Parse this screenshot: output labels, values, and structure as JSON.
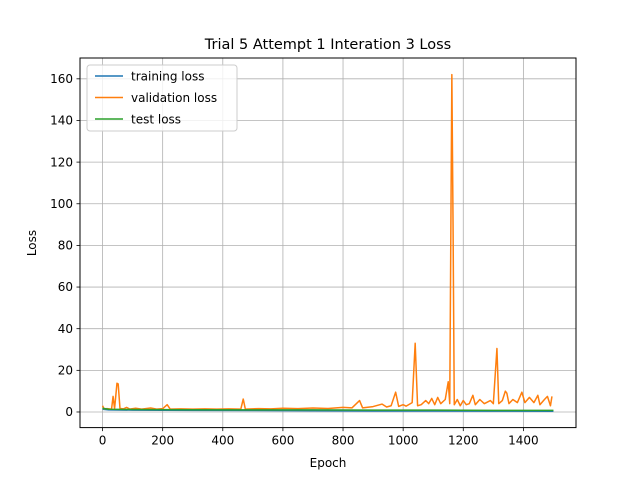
{
  "chart_data": {
    "type": "line",
    "title": "Trial 5 Attempt 1 Interation 3 Loss",
    "xlabel": "Epoch",
    "ylabel": "Loss",
    "xlim": [
      -75,
      1575
    ],
    "ylim": [
      -7.5,
      170
    ],
    "xticks": [
      0,
      200,
      400,
      600,
      800,
      1000,
      1200,
      1400
    ],
    "yticks": [
      0,
      20,
      40,
      60,
      80,
      100,
      120,
      140,
      160
    ],
    "grid": true,
    "legend": "top-left",
    "series": [
      {
        "name": "training loss",
        "color": "#1f77b4",
        "points": [
          [
            0,
            1.3
          ],
          [
            20,
            1.0
          ],
          [
            100,
            0.9
          ],
          [
            300,
            0.8
          ],
          [
            500,
            0.7
          ],
          [
            700,
            0.6
          ],
          [
            900,
            0.5
          ],
          [
            1100,
            0.45
          ],
          [
            1300,
            0.4
          ],
          [
            1500,
            0.35
          ]
        ]
      },
      {
        "name": "validation loss",
        "color": "#ff7f0e",
        "points": [
          [
            0,
            3.0
          ],
          [
            5,
            1.5
          ],
          [
            15,
            1.6
          ],
          [
            30,
            1.4
          ],
          [
            35,
            7.5
          ],
          [
            40,
            1.6
          ],
          [
            48,
            13.8
          ],
          [
            52,
            13.5
          ],
          [
            58,
            1.7
          ],
          [
            70,
            1.5
          ],
          [
            80,
            2.2
          ],
          [
            90,
            1.4
          ],
          [
            110,
            1.8
          ],
          [
            130,
            1.4
          ],
          [
            160,
            1.9
          ],
          [
            180,
            1.4
          ],
          [
            200,
            1.6
          ],
          [
            215,
            3.5
          ],
          [
            225,
            1.4
          ],
          [
            260,
            1.5
          ],
          [
            300,
            1.4
          ],
          [
            340,
            1.5
          ],
          [
            380,
            1.4
          ],
          [
            420,
            1.5
          ],
          [
            460,
            1.4
          ],
          [
            468,
            6.2
          ],
          [
            475,
            1.4
          ],
          [
            520,
            1.6
          ],
          [
            560,
            1.5
          ],
          [
            600,
            1.8
          ],
          [
            650,
            1.6
          ],
          [
            700,
            1.9
          ],
          [
            750,
            1.7
          ],
          [
            800,
            2.2
          ],
          [
            830,
            2.0
          ],
          [
            855,
            5.5
          ],
          [
            865,
            2.0
          ],
          [
            900,
            2.6
          ],
          [
            930,
            3.8
          ],
          [
            945,
            2.4
          ],
          [
            960,
            3.0
          ],
          [
            975,
            9.5
          ],
          [
            985,
            2.7
          ],
          [
            1000,
            3.5
          ],
          [
            1010,
            2.8
          ],
          [
            1030,
            4.5
          ],
          [
            1040,
            33.0
          ],
          [
            1048,
            3.0
          ],
          [
            1060,
            3.5
          ],
          [
            1075,
            5.5
          ],
          [
            1085,
            4.0
          ],
          [
            1095,
            6.5
          ],
          [
            1105,
            3.5
          ],
          [
            1115,
            7.0
          ],
          [
            1125,
            4.0
          ],
          [
            1140,
            6.0
          ],
          [
            1150,
            14.5
          ],
          [
            1155,
            4.0
          ],
          [
            1162,
            162.0
          ],
          [
            1166,
            90.0
          ],
          [
            1170,
            3.5
          ],
          [
            1180,
            6.0
          ],
          [
            1190,
            3.0
          ],
          [
            1200,
            5.5
          ],
          [
            1210,
            3.5
          ],
          [
            1220,
            4.0
          ],
          [
            1232,
            8.0
          ],
          [
            1240,
            3.5
          ],
          [
            1255,
            6.0
          ],
          [
            1270,
            4.0
          ],
          [
            1290,
            5.5
          ],
          [
            1300,
            4.0
          ],
          [
            1312,
            30.5
          ],
          [
            1318,
            4.0
          ],
          [
            1330,
            5.5
          ],
          [
            1340,
            10.0
          ],
          [
            1345,
            9.0
          ],
          [
            1352,
            4.0
          ],
          [
            1365,
            6.0
          ],
          [
            1380,
            4.5
          ],
          [
            1395,
            9.5
          ],
          [
            1405,
            4.5
          ],
          [
            1420,
            7.0
          ],
          [
            1435,
            4.5
          ],
          [
            1448,
            8.0
          ],
          [
            1455,
            3.5
          ],
          [
            1470,
            6.0
          ],
          [
            1480,
            7.5
          ],
          [
            1490,
            3.0
          ],
          [
            1495,
            7.5
          ]
        ]
      },
      {
        "name": "test loss",
        "color": "#2ca02c",
        "points": [
          [
            0,
            1.8
          ],
          [
            20,
            1.3
          ],
          [
            100,
            1.2
          ],
          [
            300,
            1.1
          ],
          [
            500,
            1.0
          ],
          [
            700,
            1.0
          ],
          [
            900,
            0.9
          ],
          [
            1100,
            0.9
          ],
          [
            1300,
            0.8
          ],
          [
            1500,
            0.8
          ]
        ]
      }
    ]
  }
}
